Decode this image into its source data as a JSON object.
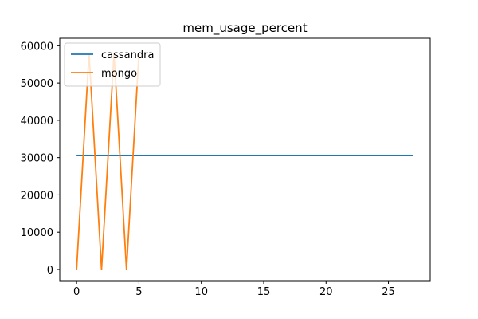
{
  "chart_data": {
    "type": "line",
    "title": "mem_usage_percent",
    "xlabel": "",
    "ylabel": "",
    "xlim": [
      -1.35,
      28.35
    ],
    "ylim": [
      -3000,
      62000
    ],
    "x_ticks": [
      0,
      5,
      10,
      15,
      20,
      25
    ],
    "y_ticks": [
      0,
      10000,
      20000,
      30000,
      40000,
      50000,
      60000
    ],
    "grid": false,
    "legend_position": "upper-left",
    "series": [
      {
        "name": "cassandra",
        "color": "#1f77b4",
        "x": [
          0,
          1,
          2,
          3,
          4,
          5,
          6,
          7,
          8,
          9,
          10,
          11,
          12,
          13,
          14,
          15,
          16,
          17,
          18,
          19,
          20,
          21,
          22,
          23,
          24,
          25,
          26,
          27
        ],
        "values": [
          30600,
          30600,
          30600,
          30600,
          30600,
          30600,
          30600,
          30600,
          30600,
          30600,
          30600,
          30600,
          30600,
          30600,
          30600,
          30600,
          30600,
          30600,
          30600,
          30600,
          30600,
          30600,
          30600,
          30600,
          30600,
          30600,
          30600,
          30600
        ]
      },
      {
        "name": "mongo",
        "color": "#ff7f0e",
        "x": [
          0,
          1,
          2,
          3,
          4,
          5
        ],
        "values": [
          0,
          58000,
          0,
          58000,
          0,
          58000
        ]
      }
    ]
  }
}
